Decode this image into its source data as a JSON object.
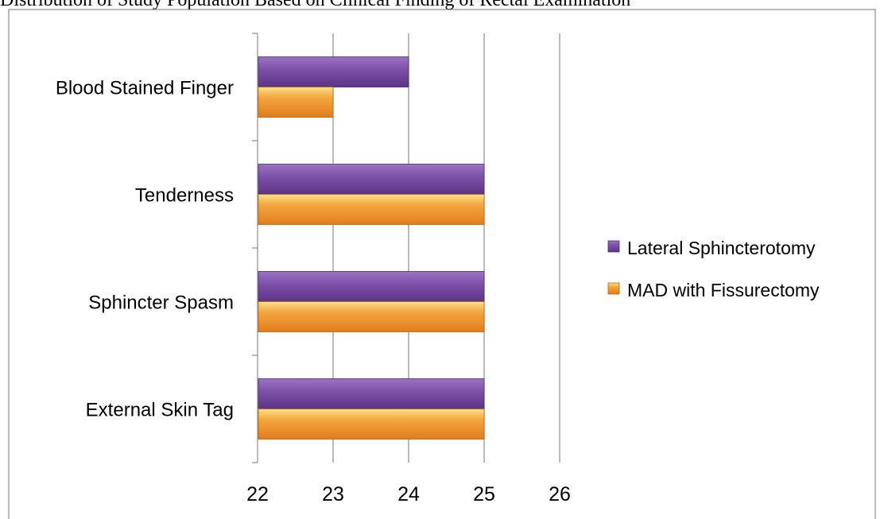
{
  "caption": "Distribution of Study Population Based on Clinical Finding of Rectal Examination",
  "chart_data": {
    "type": "bar",
    "orientation": "horizontal",
    "categories": [
      "Blood Stained Finger",
      "Tenderness",
      "Sphincter Spasm",
      "External Skin Tag"
    ],
    "series": [
      {
        "name": "Lateral Sphincterotomy",
        "values": [
          24,
          25,
          25,
          25
        ],
        "color": "#7b4fa6"
      },
      {
        "name": "MAD with Fissurectomy",
        "values": [
          23,
          25,
          25,
          25
        ],
        "color": "#f0922e"
      }
    ],
    "xlim": [
      22,
      26
    ],
    "xticks": [
      "22",
      "23",
      "24",
      "25",
      "26"
    ],
    "grid": true,
    "legend_position": "right"
  }
}
